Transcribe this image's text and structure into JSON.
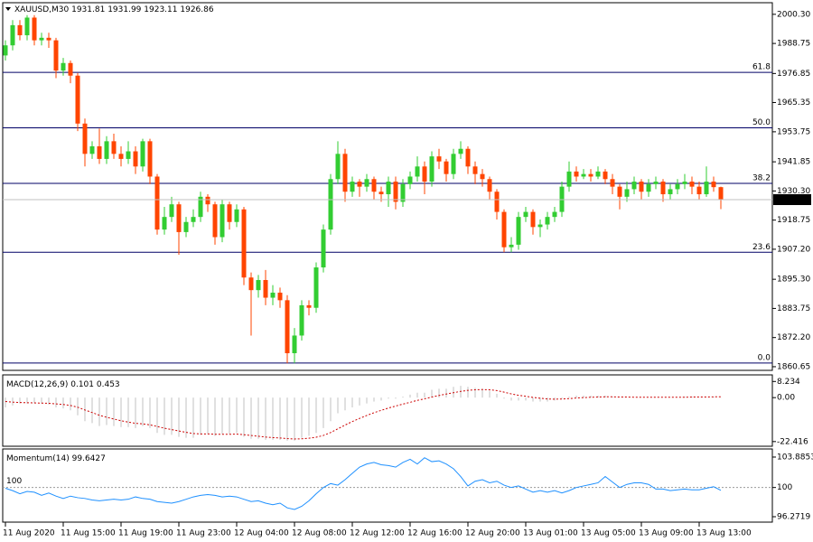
{
  "chart_data": [
    {
      "type": "candlestick",
      "title": "XAUUSD,M30",
      "up_color": "#32cd32",
      "down_color": "#ff4500",
      "categories": [
        "11 Aug 2020",
        null,
        null,
        null,
        null,
        null,
        null,
        null,
        "11 Aug 15:00",
        null,
        null,
        null,
        null,
        null,
        null,
        null,
        "11 Aug 19:00",
        null,
        null,
        null,
        null,
        null,
        null,
        null,
        "11 Aug 23:00",
        null,
        null,
        null,
        null,
        null,
        null,
        null,
        "12 Aug 04:00",
        null,
        null,
        null,
        null,
        null,
        null,
        null,
        "12 Aug 08:00",
        null,
        null,
        null,
        null,
        null,
        null,
        null,
        "12 Aug 12:00",
        null,
        null,
        null,
        null,
        null,
        null,
        null,
        "12 Aug 16:00",
        null,
        null,
        null,
        null,
        null,
        null,
        null,
        "12 Aug 20:00",
        null,
        null,
        null,
        null,
        null,
        null,
        null,
        "13 Aug 01:00",
        null,
        null,
        null,
        null,
        null,
        null,
        null,
        "13 Aug 05:00",
        null,
        null,
        null,
        null,
        null,
        null,
        null,
        "13 Aug 09:00",
        null,
        null,
        null,
        null,
        null,
        null,
        null,
        "13 Aug 13:00",
        null,
        null,
        null
      ],
      "ohlc": [
        [
          1984,
          1990,
          1982,
          1988
        ],
        [
          1988,
          1998,
          1986,
          1996
        ],
        [
          1996,
          1998,
          1990,
          1992
        ],
        [
          1992,
          2000,
          1990,
          1999
        ],
        [
          1999,
          2000,
          1988,
          1990
        ],
        [
          1990,
          1993,
          1988,
          1991
        ],
        [
          1991,
          1993,
          1987,
          1990
        ],
        [
          1990,
          1991,
          1975,
          1978
        ],
        [
          1978,
          1983,
          1976,
          1981
        ],
        [
          1981,
          1982,
          1973,
          1976
        ],
        [
          1976,
          1977,
          1954,
          1957
        ],
        [
          1957,
          1959,
          1940,
          1945
        ],
        [
          1945,
          1950,
          1943,
          1948
        ],
        [
          1948,
          1955,
          1941,
          1943
        ],
        [
          1943,
          1952,
          1941,
          1950
        ],
        [
          1950,
          1953,
          1943,
          1945
        ],
        [
          1945,
          1948,
          1940,
          1943
        ],
        [
          1943,
          1950,
          1941,
          1946
        ],
        [
          1946,
          1948,
          1937,
          1940
        ],
        [
          1940,
          1951,
          1938,
          1950
        ],
        [
          1950,
          1951,
          1933,
          1936
        ],
        [
          1936,
          1937,
          1913,
          1915
        ],
        [
          1915,
          1924,
          1913,
          1920
        ],
        [
          1920,
          1928,
          1918,
          1925
        ],
        [
          1925,
          1926,
          1905,
          1914
        ],
        [
          1914,
          1920,
          1912,
          1918
        ],
        [
          1918,
          1923,
          1916,
          1920
        ],
        [
          1920,
          1930,
          1918,
          1928
        ],
        [
          1928,
          1929,
          1922,
          1925
        ],
        [
          1925,
          1926,
          1909,
          1912
        ],
        [
          1912,
          1927,
          1910,
          1925
        ],
        [
          1925,
          1926,
          1915,
          1918
        ],
        [
          1918,
          1925,
          1916,
          1923
        ],
        [
          1923,
          1924,
          1893,
          1896
        ],
        [
          1896,
          1898,
          1873,
          1891
        ],
        [
          1891,
          1897,
          1888,
          1895
        ],
        [
          1895,
          1899,
          1885,
          1888
        ],
        [
          1888,
          1893,
          1885,
          1890
        ],
        [
          1890,
          1892,
          1884,
          1887
        ],
        [
          1887,
          1889,
          1862,
          1866
        ],
        [
          1866,
          1876,
          1862,
          1873
        ],
        [
          1873,
          1887,
          1871,
          1885
        ],
        [
          1885,
          1887,
          1881,
          1884
        ],
        [
          1884,
          1902,
          1882,
          1900
        ],
        [
          1900,
          1917,
          1898,
          1915
        ],
        [
          1915,
          1937,
          1913,
          1935
        ],
        [
          1935,
          1950,
          1933,
          1945
        ],
        [
          1945,
          1947,
          1926,
          1930
        ],
        [
          1930,
          1936,
          1928,
          1934
        ],
        [
          1934,
          1935,
          1928,
          1932
        ],
        [
          1932,
          1937,
          1930,
          1935
        ],
        [
          1935,
          1936,
          1927,
          1930
        ],
        [
          1930,
          1932,
          1926,
          1929
        ],
        [
          1929,
          1936,
          1924,
          1934
        ],
        [
          1934,
          1936,
          1923,
          1926
        ],
        [
          1926,
          1935,
          1924,
          1933
        ],
        [
          1933,
          1938,
          1931,
          1936
        ],
        [
          1936,
          1944,
          1934,
          1940
        ],
        [
          1940,
          1942,
          1929,
          1934
        ],
        [
          1934,
          1946,
          1932,
          1944
        ],
        [
          1944,
          1947,
          1939,
          1942
        ],
        [
          1942,
          1943,
          1934,
          1937
        ],
        [
          1937,
          1947,
          1935,
          1945
        ],
        [
          1945,
          1950,
          1943,
          1947
        ],
        [
          1947,
          1948,
          1937,
          1940
        ],
        [
          1940,
          1942,
          1933,
          1937
        ],
        [
          1937,
          1939,
          1932,
          1935
        ],
        [
          1935,
          1936,
          1927,
          1930
        ],
        [
          1930,
          1931,
          1919,
          1922
        ],
        [
          1922,
          1923,
          1906,
          1908
        ],
        [
          1908,
          1912,
          1906,
          1909
        ],
        [
          1909,
          1922,
          1907,
          1920
        ],
        [
          1920,
          1924,
          1918,
          1922
        ],
        [
          1922,
          1923,
          1913,
          1916
        ],
        [
          1916,
          1919,
          1912,
          1917
        ],
        [
          1917,
          1922,
          1915,
          1920
        ],
        [
          1920,
          1924,
          1918,
          1922
        ],
        [
          1922,
          1934,
          1920,
          1932
        ],
        [
          1932,
          1942,
          1930,
          1938
        ],
        [
          1938,
          1940,
          1934,
          1936
        ],
        [
          1936,
          1939,
          1935,
          1937
        ],
        [
          1937,
          1939,
          1934,
          1936
        ],
        [
          1936,
          1940,
          1935,
          1938
        ],
        [
          1938,
          1939,
          1933,
          1935
        ],
        [
          1935,
          1937,
          1929,
          1932
        ],
        [
          1932,
          1933,
          1923,
          1928
        ],
        [
          1928,
          1934,
          1926,
          1931
        ],
        [
          1931,
          1936,
          1929,
          1934
        ],
        [
          1934,
          1935,
          1927,
          1930
        ],
        [
          1930,
          1935,
          1928,
          1933
        ],
        [
          1933,
          1936,
          1931,
          1934
        ],
        [
          1934,
          1935,
          1926,
          1929
        ],
        [
          1929,
          1933,
          1927,
          1931
        ],
        [
          1931,
          1935,
          1929,
          1933
        ],
        [
          1933,
          1937,
          1931,
          1934
        ],
        [
          1934,
          1936,
          1929,
          1932
        ],
        [
          1932,
          1934,
          1927,
          1929
        ],
        [
          1929,
          1940,
          1928,
          1934
        ],
        [
          1934,
          1936,
          1930,
          1931.81
        ],
        [
          1931.81,
          1931.99,
          1923.11,
          1926.86
        ]
      ],
      "ylim": [
        1859.2,
        2004.9
      ],
      "yticks": [
        {
          "value": 2000.3,
          "label": "2000.30"
        },
        1988.75,
        1976.85,
        1965.35,
        1953.75,
        1941.85,
        {
          "value": 1930.3,
          "label": "1930.30"
        },
        1918.75,
        {
          "value": 1907.2,
          "label": "1907.20"
        },
        {
          "value": 1895.3,
          "label": "1895.30"
        },
        1883.75,
        {
          "value": 1872.2,
          "label": "1872.20"
        },
        1860.65
      ],
      "fib_levels": [
        {
          "value": 1977.3,
          "label": "61.8"
        },
        {
          "value": 1955.3,
          "label": "50.0"
        },
        {
          "value": 1933.3,
          "label": "38.2"
        },
        {
          "value": 1906.0,
          "label": "23.6"
        },
        {
          "value": 1862.1,
          "label": "0.0"
        }
      ],
      "fib_color": "#000066"
    },
    {
      "type": "macd",
      "title": "MACD(12,26,9)",
      "ylim": [
        -24.8,
        11.6
      ],
      "yticks": [
        8.234,
        {
          "value": 0,
          "label": "0.00"
        },
        -22.416
      ],
      "series": [
        {
          "style": "histogram",
          "color": "#c0c0c0",
          "values": [
            -5,
            -4,
            -3,
            -3,
            -3,
            -3,
            -3.5,
            -5,
            -5.5,
            -6.5,
            -9,
            -12,
            -13,
            -14.5,
            -14,
            -14.5,
            -15,
            -15,
            -15.5,
            -14.5,
            -15.5,
            -18,
            -19,
            -19,
            -20,
            -20.5,
            -20.5,
            -19,
            -18.5,
            -19.5,
            -18.5,
            -18.5,
            -18,
            -20,
            -21,
            -21,
            -21.5,
            -21.5,
            -21.5,
            -22,
            -22,
            -20.5,
            -19.5,
            -18,
            -15.5,
            -12,
            -8,
            -6.5,
            -5,
            -4,
            -3,
            -2,
            -1.5,
            -0.5,
            -0.5,
            0.5,
            1.5,
            2.5,
            2.5,
            4,
            4.5,
            4.5,
            5.5,
            6,
            5.5,
            5,
            4.5,
            3.5,
            2,
            -0.5,
            -1.5,
            -1.5,
            -1.5,
            -2,
            -2,
            -2,
            -1.5,
            -0.5,
            0.5,
            1,
            1,
            1,
            1,
            1,
            0.5,
            0,
            0,
            0,
            0,
            0,
            0,
            0,
            0,
            0,
            0.5,
            0.5,
            0,
            0,
            0.5,
            0.101
          ]
        },
        {
          "style": "dotted",
          "color": "#cc0000",
          "values": [
            -2,
            -2.3,
            -2.5,
            -2.6,
            -2.7,
            -2.8,
            -2.9,
            -3.2,
            -3.5,
            -4,
            -4.9,
            -6.3,
            -7.6,
            -9,
            -10,
            -10.9,
            -11.8,
            -12.5,
            -13.1,
            -13.4,
            -13.9,
            -14.7,
            -15.6,
            -16.3,
            -17,
            -17.7,
            -18.3,
            -18.5,
            -18.5,
            -18.7,
            -18.7,
            -18.7,
            -18.6,
            -18.9,
            -19.3,
            -19.7,
            -20.1,
            -20.4,
            -20.6,
            -20.9,
            -21.1,
            -21,
            -20.7,
            -20.2,
            -19.3,
            -17.8,
            -15.9,
            -14,
            -12.2,
            -10.6,
            -9.1,
            -7.7,
            -6.5,
            -5.3,
            -4.3,
            -3.3,
            -2.4,
            -1.4,
            -0.6,
            0.3,
            1.1,
            1.8,
            2.5,
            3.2,
            3.7,
            4,
            4.1,
            4,
            3.6,
            2.8,
            1.9,
            1.2,
            0.7,
            0.1,
            -0.3,
            -0.7,
            -0.8,
            -0.7,
            -0.5,
            -0.2,
            0,
            0.2,
            0.3,
            0.4,
            0.4,
            0.3,
            0.3,
            0.2,
            0.2,
            0.2,
            0.2,
            0.2,
            0.2,
            0.2,
            0.2,
            0.3,
            0.3,
            0.3,
            0.4,
            0.453
          ]
        }
      ]
    },
    {
      "type": "momentum",
      "title": "Momentum(14)",
      "color": "#1e90ff",
      "level": 100,
      "ylim": [
        95.58,
        104.92
      ],
      "yticks": [
        103.8853,
        100,
        96.2719
      ],
      "values": [
        99.9,
        99.6,
        99.2,
        99.5,
        99.4,
        99.0,
        99.3,
        98.9,
        98.6,
        98.9,
        98.7,
        98.6,
        98.4,
        98.3,
        98.4,
        98.5,
        98.4,
        98.5,
        98.8,
        98.6,
        98.5,
        98.2,
        98.1,
        98.0,
        98.2,
        98.5,
        98.8,
        99.0,
        99.1,
        99.0,
        98.8,
        98.9,
        98.8,
        98.5,
        98.2,
        98.3,
        98.0,
        97.8,
        98.0,
        97.4,
        97.2,
        97.6,
        98.3,
        99.2,
        100.0,
        100.5,
        100.3,
        101.0,
        101.8,
        102.6,
        103.0,
        103.2,
        102.9,
        102.8,
        102.6,
        103.2,
        103.6,
        103.0,
        103.8,
        103.3,
        103.4,
        103.0,
        102.4,
        101.4,
        100.2,
        100.8,
        101.0,
        100.6,
        100.8,
        100.3,
        100.0,
        100.2,
        99.8,
        99.4,
        99.6,
        99.4,
        99.6,
        99.3,
        99.6,
        100.0,
        100.2,
        100.4,
        100.6,
        101.4,
        100.7,
        100.0,
        100.4,
        100.6,
        100.6,
        100.4,
        99.8,
        99.8,
        99.6,
        99.7,
        99.8,
        99.7,
        99.7,
        99.9,
        100.1,
        99.6427
      ]
    }
  ]
}
